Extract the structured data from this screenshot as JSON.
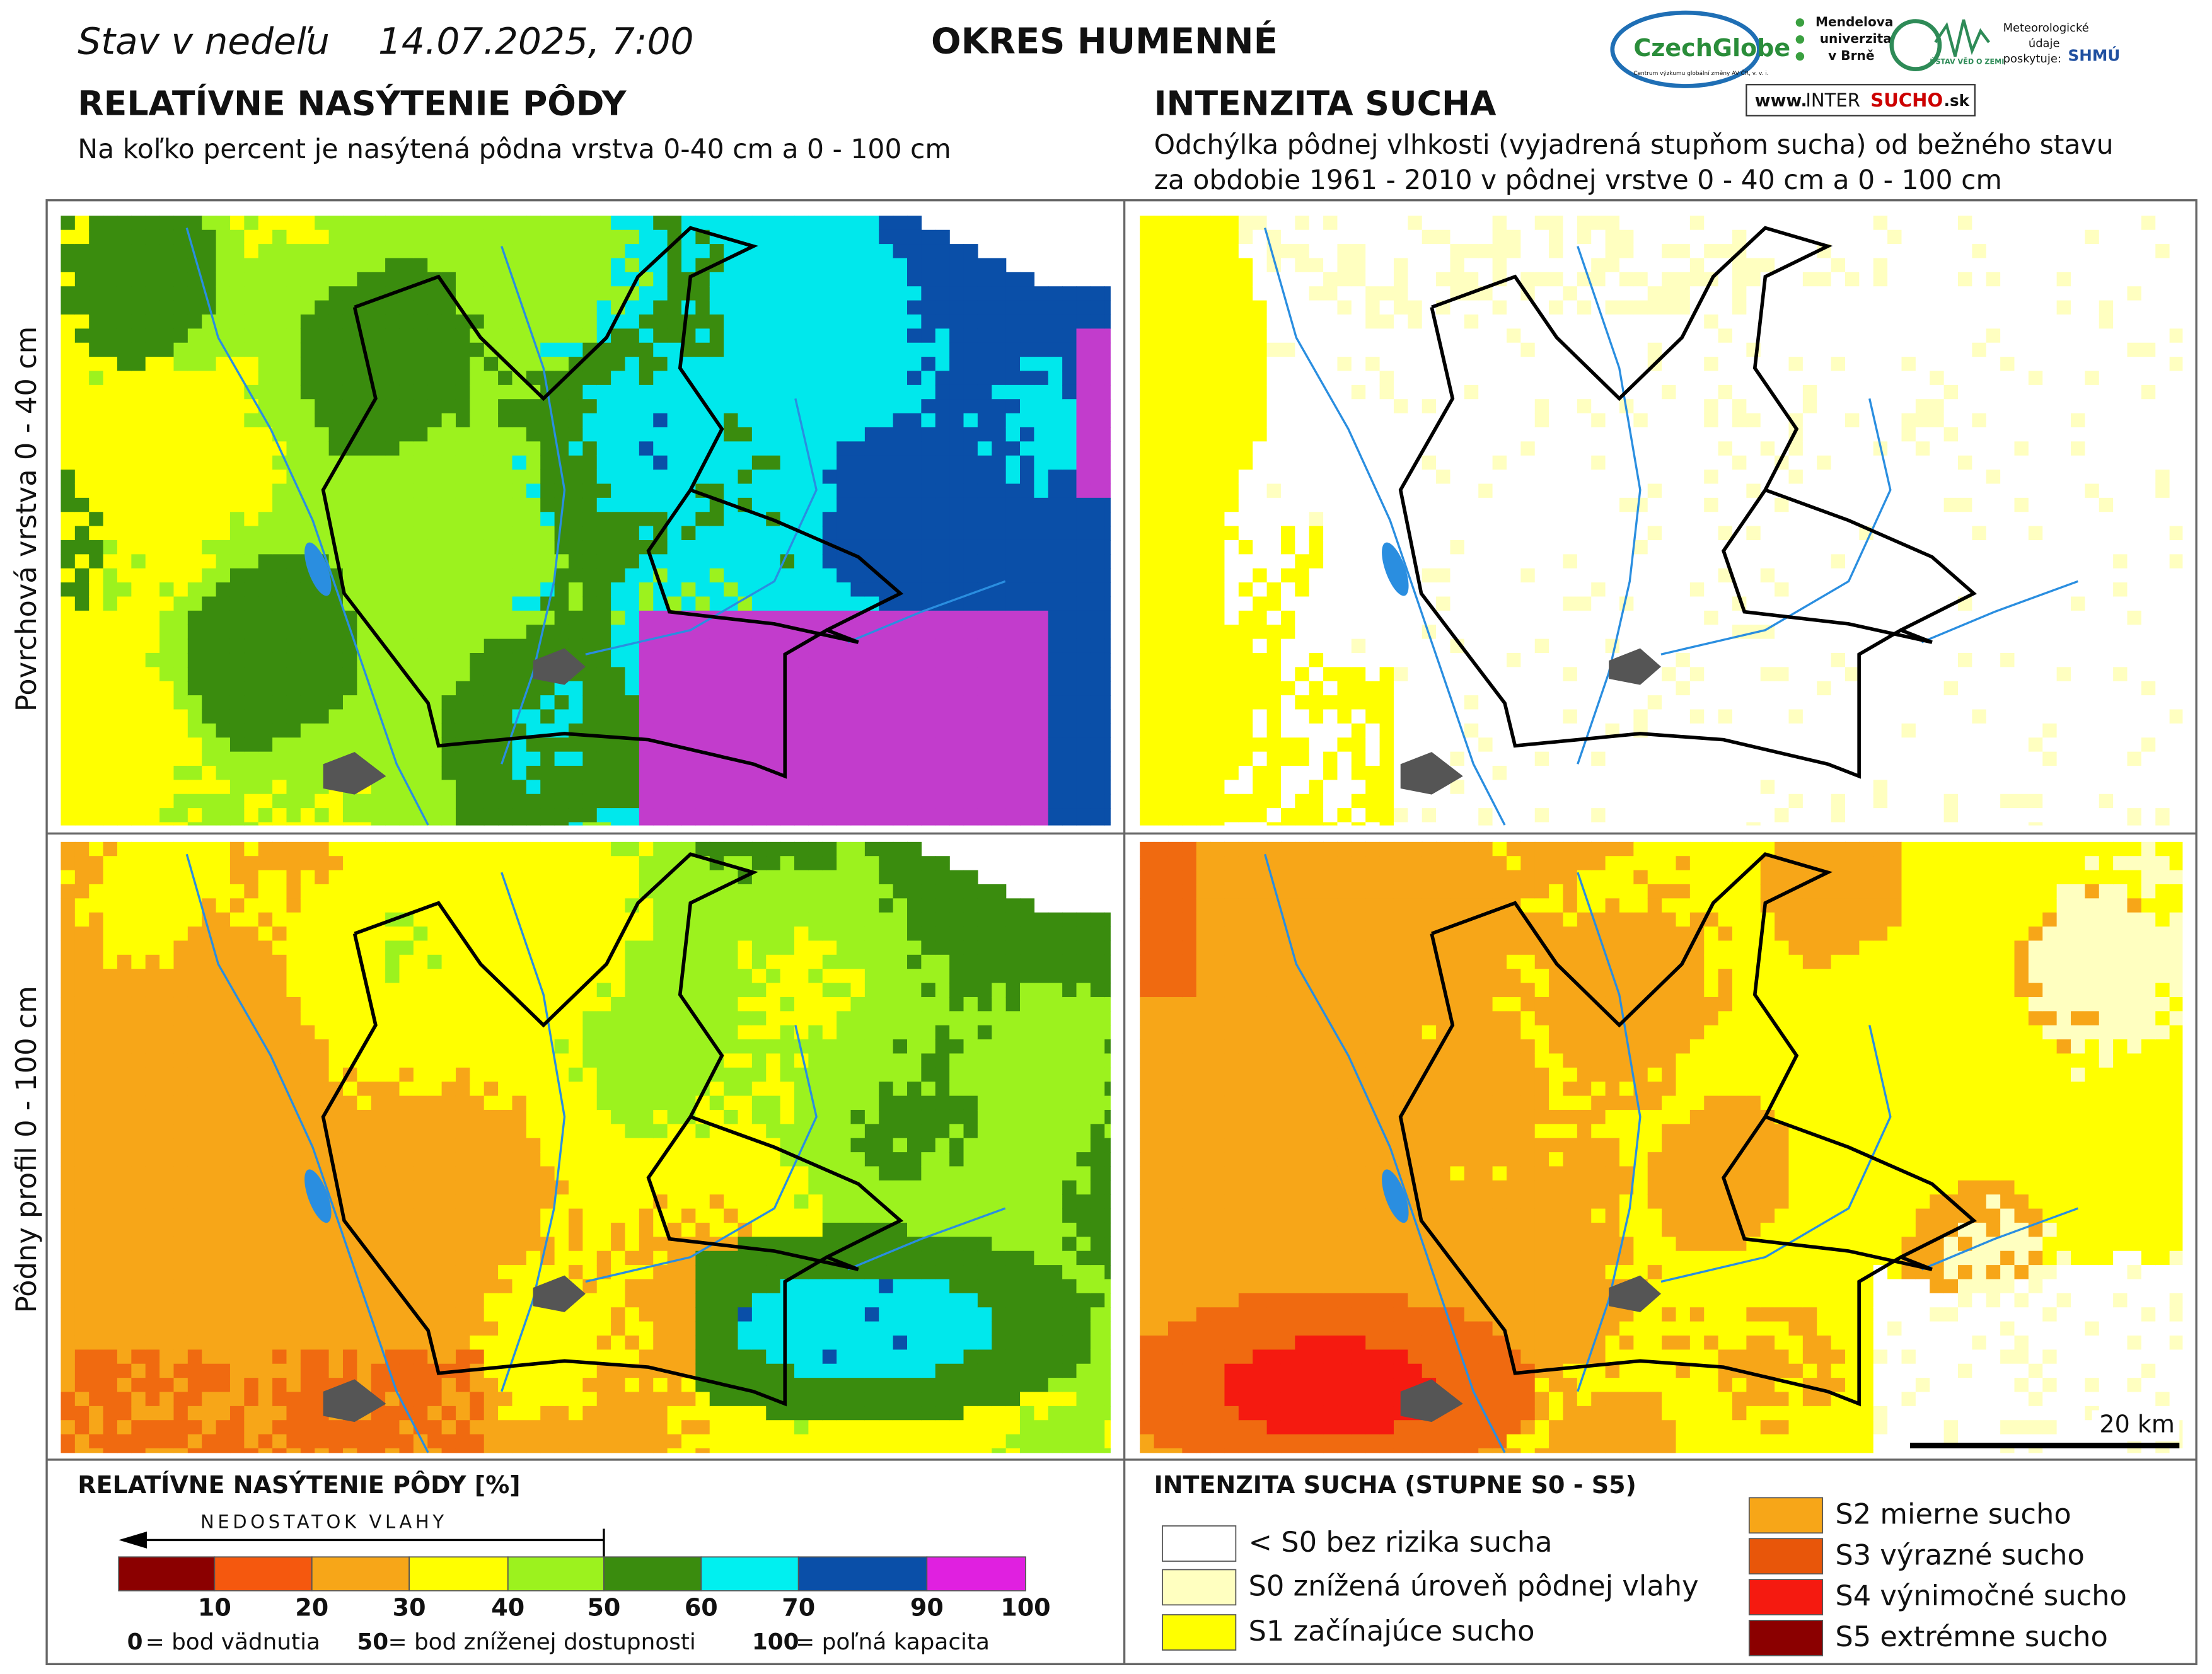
{
  "header": {
    "day_prefix": "Stav v nedeľu",
    "datetime": "14.07.2025, 7:00",
    "district": "OKRES HUMENNÉ"
  },
  "logos": {
    "czechglobe": "CzechGlobe",
    "czechglobe_sub": "Centrum výzkumu globální změny AV ČR, v. v. i.",
    "mendel": [
      "Mendelova",
      "univerzita",
      "v Brně"
    ],
    "uvz": "ÚSTAV VĚD O ZEMI",
    "meteo": [
      "Meteorologické",
      "údaje",
      "poskytuje:"
    ],
    "shmu": "SHMÚ",
    "web_prefix": "www.",
    "web_inter": "INTER",
    "web_sucho": "SUCHO",
    "web_suffix": ".sk"
  },
  "sections": [
    {
      "title": "RELATÍVNE NASÝTENIE PÔDY",
      "subtitle_lines": [
        "Na koľko percent je nasýtená pôdna vrstva 0-40 cm a 0 - 100 cm"
      ]
    },
    {
      "title": "INTENZITA SUCHA",
      "subtitle_lines": [
        "Odchýlka pôdnej vlhkosti (vyjadrená stupňom sucha) od bežného stavu",
        "za obdobie 1961 - 2010 v pôdnej vrstve 0 - 40 cm a 0 - 100 cm"
      ]
    }
  ],
  "rows": [
    "Povrchová vrstva 0 - 40 cm",
    "Pôdny profil 0 - 100 cm"
  ],
  "scale_bar": "20 km",
  "saturation_legend": {
    "title": "RELATÍVNE NASÝTENIE PÔDY [%]",
    "arrow_label": "NEDOSTATOK VLAHY",
    "ticks": [
      10,
      20,
      30,
      40,
      50,
      60,
      70,
      90,
      100
    ],
    "notes": [
      {
        "key": "0",
        "text": "= bod vädnutia"
      },
      {
        "key": "50",
        "text": "= bod zníženej dostupnosti"
      },
      {
        "key": "100",
        "text": "= poľná kapacita"
      }
    ]
  },
  "drought_legend": {
    "title": "INTENZITA SUCHA (STUPNE S0 - S5)",
    "items": [
      "< S0 bez rizika sucha",
      "S0 znížená úroveň pôdnej vlahy",
      "S1 začínajúce sucho",
      "S2 mierne sucho",
      "S3 výrazné sucho",
      "S4 výnimočné sucho",
      "S5 extrémne sucho"
    ]
  }
}
